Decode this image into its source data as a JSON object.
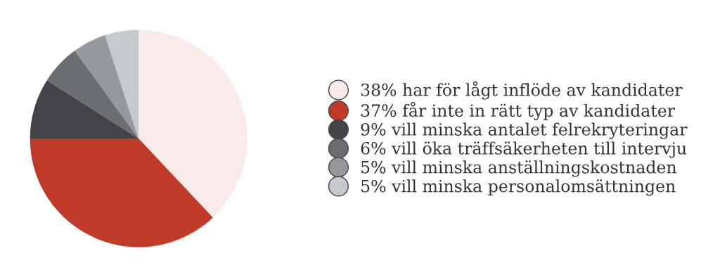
{
  "chart_data": {
    "type": "pie",
    "categories": [
      "har för lågt inflöde av kandidater",
      "får inte in rätt typ av kandidater",
      "vill minska antalet felrekryteringar",
      "vill öka träffsäkerheten till intervju",
      "vill minska anställningskostnaden",
      "vill minska personalomsättningen"
    ],
    "values": [
      38,
      37,
      9,
      6,
      5,
      5
    ],
    "value_labels": [
      "38%",
      "37%",
      "9%",
      "6%",
      "5%",
      "5%"
    ],
    "colors": [
      "#f9ebe7",
      "#bf3a29",
      "#444446",
      "#6c6d70",
      "#97989b",
      "#c8c9cc"
    ],
    "legend": "right"
  }
}
